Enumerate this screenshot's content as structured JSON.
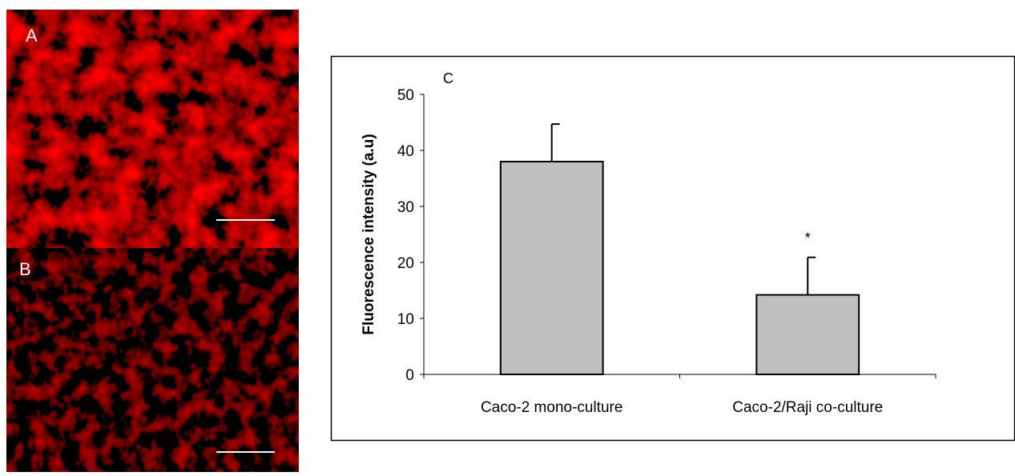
{
  "panels": {
    "a": "A",
    "b": "B"
  },
  "chart_data": {
    "type": "bar",
    "panel_label": "C",
    "y_label": "Fluorescence intensity (a.u)",
    "categories": [
      "Caco-2 mono-culture",
      "Caco-2/Raji co-culture"
    ],
    "values": [
      38,
      14.2
    ],
    "errors": [
      6.7,
      6.7
    ],
    "color": "#c0c0c0",
    "annotations": [
      {
        "text": "*",
        "category": 1
      }
    ],
    "ylim": [
      0,
      50
    ],
    "yticks": [
      0,
      10,
      20,
      30,
      40,
      50
    ],
    "grid": false
  }
}
